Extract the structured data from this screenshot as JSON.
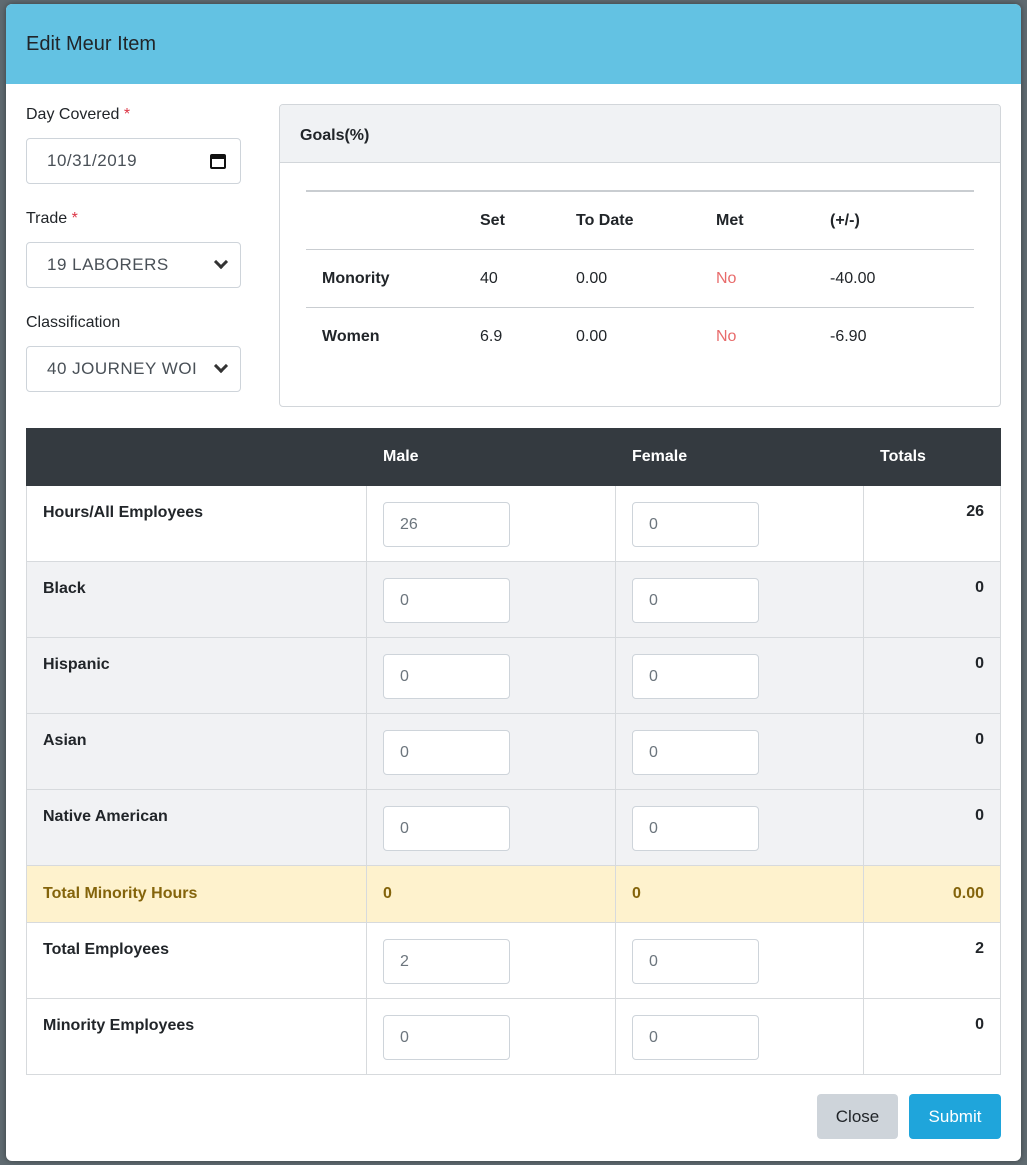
{
  "modal": {
    "title": "Edit Meur Item"
  },
  "form": {
    "day_covered": {
      "label": "Day Covered",
      "required_mark": "*",
      "value": "10/31/2019"
    },
    "trade": {
      "label": "Trade",
      "required_mark": "*",
      "value": "19 LABORERS"
    },
    "classification": {
      "label": "Classification",
      "value": "40 JOURNEY WOI"
    }
  },
  "goals": {
    "title": "Goals(%)",
    "columns": [
      "",
      "Set",
      "To Date",
      "Met",
      "(+/-)"
    ],
    "rows": [
      {
        "label": "Monority",
        "set": "40",
        "to_date": "0.00",
        "met": "No",
        "diff": "-40.00"
      },
      {
        "label": "Women",
        "set": "6.9",
        "to_date": "0.00",
        "met": "No",
        "diff": "-6.90"
      }
    ]
  },
  "hours": {
    "columns": [
      "",
      "Male",
      "Female",
      "Totals"
    ],
    "rows": [
      {
        "label": "Hours/All Employees",
        "male": "26",
        "female": "0",
        "total": "26"
      },
      {
        "label": "Black",
        "male": "0",
        "female": "0",
        "total": "0"
      },
      {
        "label": "Hispanic",
        "male": "0",
        "female": "0",
        "total": "0"
      },
      {
        "label": "Asian",
        "male": "0",
        "female": "0",
        "total": "0"
      },
      {
        "label": "Native American",
        "male": "0",
        "female": "0",
        "total": "0"
      }
    ],
    "summary": {
      "label": "Total Minority Hours",
      "male": "0",
      "female": "0",
      "total": "0.00"
    },
    "employee_rows": [
      {
        "label": "Total Employees",
        "male": "2",
        "female": "0",
        "total": "2"
      },
      {
        "label": "Minority Employees",
        "male": "0",
        "female": "0",
        "total": "0"
      }
    ]
  },
  "footer": {
    "close_label": "Close",
    "submit_label": "Submit"
  },
  "colors": {
    "header": "#63c2e3",
    "submit": "#1fa5db",
    "no": "#e86b6b",
    "summary_bg": "#fef2cd"
  }
}
